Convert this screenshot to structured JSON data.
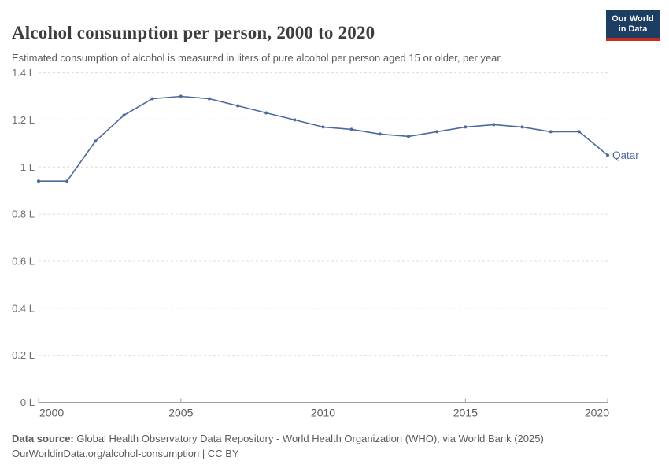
{
  "header": {
    "title": "Alcohol consumption per person, 2000 to 2020",
    "subtitle": "Estimated consumption of alcohol is measured in liters of pure alcohol per person aged 15 or older, per year.",
    "logo": {
      "line1": "Our World",
      "line2": "in Data"
    }
  },
  "chart_data": {
    "type": "line",
    "title": "Alcohol consumption per person, 2000 to 2020",
    "x": [
      2000,
      2001,
      2002,
      2003,
      2004,
      2005,
      2006,
      2007,
      2008,
      2009,
      2010,
      2011,
      2012,
      2013,
      2014,
      2015,
      2016,
      2017,
      2018,
      2019,
      2020
    ],
    "series": [
      {
        "name": "Qatar",
        "color": "#4c6a9c",
        "values": [
          0.94,
          0.94,
          1.11,
          1.22,
          1.29,
          1.3,
          1.29,
          1.26,
          1.23,
          1.2,
          1.17,
          1.16,
          1.14,
          1.13,
          1.15,
          1.17,
          1.18,
          1.17,
          1.15,
          1.15,
          1.05
        ]
      }
    ],
    "xlabel": "",
    "ylabel": "",
    "xlim": [
      2000,
      2020
    ],
    "ylim": [
      0,
      1.4
    ],
    "x_ticks": [
      {
        "value": 2000,
        "label": "2000"
      },
      {
        "value": 2005,
        "label": "2005"
      },
      {
        "value": 2010,
        "label": "2010"
      },
      {
        "value": 2015,
        "label": "2015"
      },
      {
        "value": 2020,
        "label": "2020"
      }
    ],
    "y_ticks": [
      {
        "value": 0.0,
        "label": "0 L"
      },
      {
        "value": 0.2,
        "label": "0.2 L"
      },
      {
        "value": 0.4,
        "label": "0.4 L"
      },
      {
        "value": 0.6,
        "label": "0.6 L"
      },
      {
        "value": 0.8,
        "label": "0.8 L"
      },
      {
        "value": 1.0,
        "label": "1 L"
      },
      {
        "value": 1.2,
        "label": "1.2 L"
      },
      {
        "value": 1.4,
        "label": "1.4 L"
      }
    ],
    "grid": "horizontal-dashed",
    "legend": "end-of-line-label",
    "end_label": "Qatar"
  },
  "footer": {
    "source_label": "Data source:",
    "source_text": " Global Health Observatory Data Repository - World Health Organization (WHO), via World Bank (2025)",
    "license_line": "OurWorldinData.org/alcohol-consumption | CC BY"
  },
  "colors": {
    "series_blue": "#4c6a9c",
    "gridline": "#dcdcdc",
    "axis_line": "#9e9e9e",
    "y_tick_text": "#6e6e6e",
    "x_tick_text": "#5b5b5b",
    "title_text": "#3d3d3d",
    "body_text": "#5b5b5b",
    "logo_navy": "#1d3d63",
    "logo_red": "#c62d1c"
  }
}
